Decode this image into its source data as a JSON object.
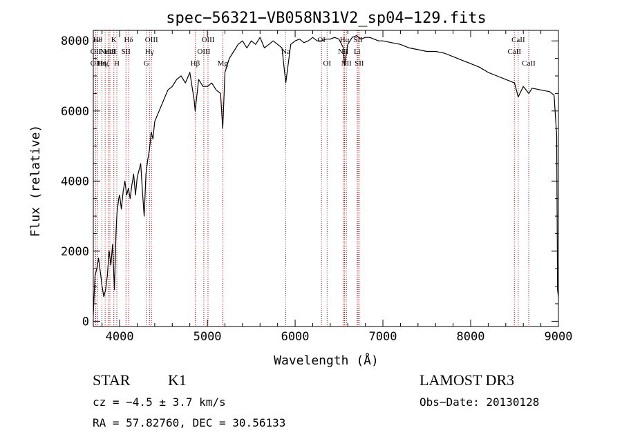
{
  "chart_data": {
    "type": "line",
    "title": "spec−56321−VB058N31V2_sp04−129.fits",
    "xlabel": "Wavelength (Å)",
    "ylabel": "Flux (relative)",
    "xlim": [
      3700,
      9000
    ],
    "ylim": [
      -150,
      8300
    ],
    "x_ticks": [
      4000,
      5000,
      6000,
      7000,
      8000,
      9000
    ],
    "y_ticks": [
      0,
      2000,
      4000,
      6000,
      8000
    ],
    "series": [
      {
        "name": "spectrum",
        "x": [
          3700,
          3720,
          3740,
          3760,
          3780,
          3800,
          3820,
          3840,
          3860,
          3880,
          3900,
          3920,
          3940,
          3960,
          3970,
          3990,
          4000,
          4020,
          4040,
          4060,
          4080,
          4100,
          4120,
          4140,
          4160,
          4180,
          4200,
          4220,
          4240,
          4260,
          4280,
          4300,
          4320,
          4340,
          4360,
          4380,
          4400,
          4450,
          4500,
          4550,
          4600,
          4650,
          4700,
          4750,
          4800,
          4850,
          4861,
          4900,
          4950,
          5000,
          5050,
          5100,
          5150,
          5175,
          5200,
          5250,
          5300,
          5350,
          5400,
          5450,
          5500,
          5550,
          5600,
          5650,
          5700,
          5750,
          5800,
          5850,
          5893,
          5950,
          6000,
          6050,
          6100,
          6150,
          6200,
          6250,
          6300,
          6350,
          6400,
          6450,
          6500,
          6550,
          6563,
          6600,
          6650,
          6700,
          6750,
          6800,
          6850,
          6900,
          6950,
          7000,
          7100,
          7200,
          7300,
          7400,
          7500,
          7600,
          7700,
          7800,
          7900,
          8000,
          8100,
          8200,
          8300,
          8400,
          8500,
          8542,
          8600,
          8662,
          8700,
          8800,
          8900,
          8950,
          8980,
          8990,
          9000
        ],
        "values": [
          200,
          1300,
          1500,
          1800,
          1400,
          1000,
          700,
          900,
          1300,
          2000,
          1600,
          2200,
          900,
          2600,
          3100,
          3500,
          3600,
          3200,
          3700,
          4000,
          3600,
          3800,
          3500,
          3900,
          4200,
          3600,
          4100,
          4300,
          4500,
          3700,
          3000,
          4200,
          4600,
          4900,
          5400,
          5200,
          5700,
          6000,
          6300,
          6600,
          6700,
          6900,
          7000,
          6800,
          7100,
          6300,
          6000,
          6900,
          6700,
          6700,
          6800,
          6600,
          6500,
          5500,
          7100,
          7500,
          7700,
          7900,
          8000,
          7800,
          8000,
          7900,
          8100,
          7800,
          7900,
          8000,
          7900,
          7800,
          6800,
          7900,
          8000,
          8050,
          7950,
          8000,
          8100,
          8000,
          8000,
          8050,
          8050,
          8100,
          8050,
          7800,
          7300,
          7900,
          8100,
          8150,
          8050,
          8100,
          8100,
          8050,
          8000,
          8000,
          7950,
          7900,
          7800,
          7750,
          7700,
          7700,
          7650,
          7550,
          7450,
          7350,
          7250,
          7100,
          7000,
          6900,
          6800,
          6400,
          6700,
          6500,
          6650,
          6600,
          6550,
          6450,
          5300,
          900,
          700
        ]
      }
    ],
    "line_markers": [
      {
        "wl": 3750,
        "label": "Hθ",
        "row": 0
      },
      {
        "wl": 3727,
        "label": "OII",
        "row": 1
      },
      {
        "wl": 3727,
        "label": "OII",
        "row": 2
      },
      {
        "wl": 3798,
        "label": "Hη",
        "row": 2
      },
      {
        "wl": 3835,
        "label": "Hζ",
        "row": 2
      },
      {
        "wl": 3869,
        "label": "NeIII",
        "row": 1
      },
      {
        "wl": 3889,
        "label": "HeI",
        "row": 1
      },
      {
        "wl": 3934,
        "label": "K",
        "row": 0
      },
      {
        "wl": 3968,
        "label": "H",
        "row": 2
      },
      {
        "wl": 4072,
        "label": "SII",
        "row": 1
      },
      {
        "wl": 4102,
        "label": "Hδ",
        "row": 0
      },
      {
        "wl": 4340,
        "label": "Hγ",
        "row": 1
      },
      {
        "wl": 4304,
        "label": "G",
        "row": 2
      },
      {
        "wl": 4363,
        "label": "OIII",
        "row": 0
      },
      {
        "wl": 4861,
        "label": "Hβ",
        "row": 2
      },
      {
        "wl": 4959,
        "label": "OIII",
        "row": 1
      },
      {
        "wl": 5007,
        "label": "OIII",
        "row": 0
      },
      {
        "wl": 5175,
        "label": "Mg",
        "row": 2
      },
      {
        "wl": 5893,
        "label": "Na",
        "row": 1
      },
      {
        "wl": 6300,
        "label": "OI",
        "row": 0
      },
      {
        "wl": 6364,
        "label": "OI",
        "row": 2
      },
      {
        "wl": 6548,
        "label": "NII",
        "row": 1
      },
      {
        "wl": 6563,
        "label": "Hα",
        "row": 0
      },
      {
        "wl": 6584,
        "label": "NII",
        "row": 2
      },
      {
        "wl": 6707,
        "label": "Li",
        "row": 1
      },
      {
        "wl": 6717,
        "label": "SII",
        "row": 0
      },
      {
        "wl": 6731,
        "label": "SII",
        "row": 2
      },
      {
        "wl": 8498,
        "label": "CaII",
        "row": 1
      },
      {
        "wl": 8542,
        "label": "CaII",
        "row": 0
      },
      {
        "wl": 8662,
        "label": "CaII",
        "row": 2
      }
    ]
  },
  "info": {
    "object_class": "STAR",
    "subclass": "K1",
    "cz": "cz = −4.5 ± 3.7 km/s",
    "coords": "RA =  57.82760, DEC =  30.56133",
    "survey": "LAMOST DR3",
    "obs_date": "Obs−Date: 20130128"
  },
  "colors": {
    "marker": "#cc0000",
    "line": "#000000"
  }
}
